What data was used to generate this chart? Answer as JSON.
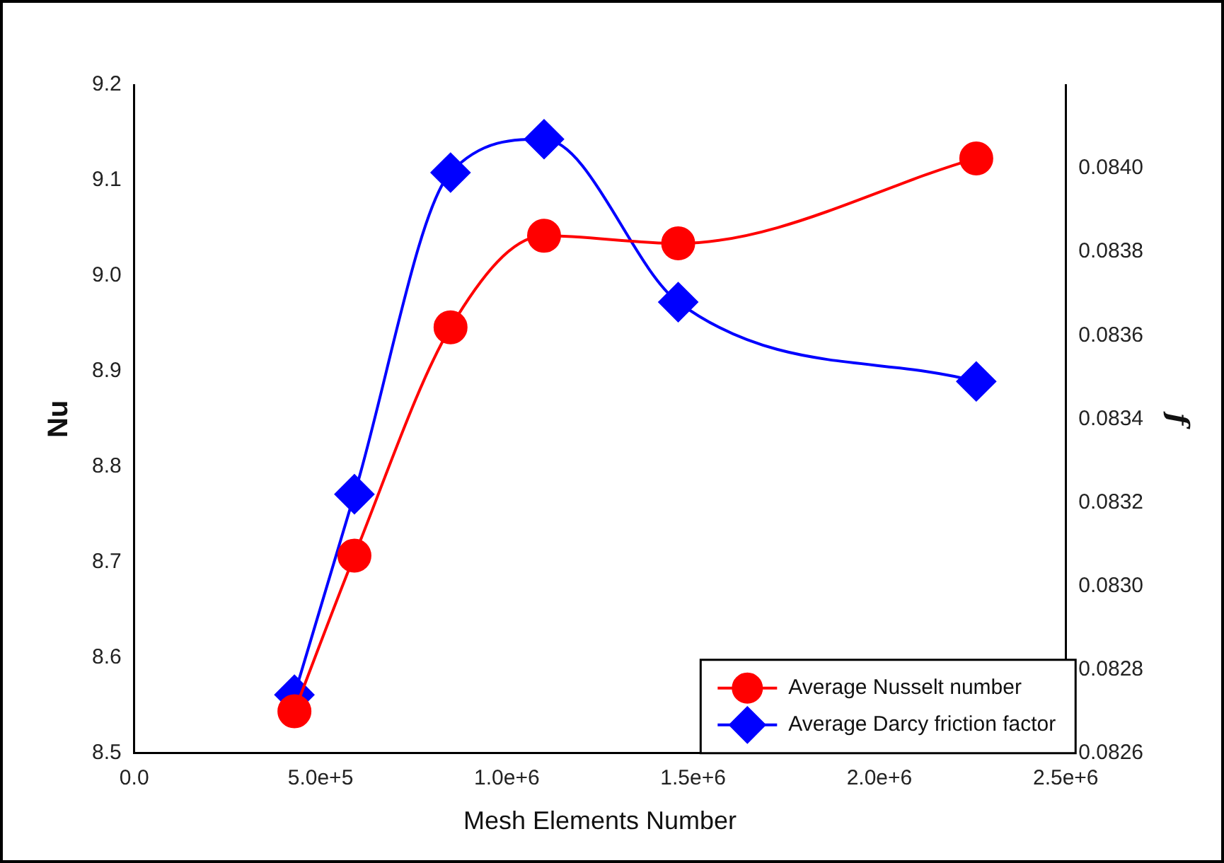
{
  "chart_data": {
    "type": "line",
    "xlabel": "Mesh Elements Number",
    "ylabel": "Nu",
    "y2label": "f",
    "xlim": [
      0,
      2500000
    ],
    "xticks": [
      {
        "value": 0,
        "label": "0.0"
      },
      {
        "value": 500000,
        "label": "5.0e+5"
      },
      {
        "value": 1000000,
        "label": "1.0e+6"
      },
      {
        "value": 1500000,
        "label": "1.5e+6"
      },
      {
        "value": 2000000,
        "label": "2.0e+6"
      },
      {
        "value": 2500000,
        "label": "2.5e+6"
      }
    ],
    "ylim": [
      8.5,
      9.2
    ],
    "yticks": [
      8.5,
      8.6,
      8.7,
      8.8,
      8.9,
      {
        "value": 9.0,
        "label": "9.0"
      },
      9.1,
      9.2
    ],
    "y2lim": [
      0.0826,
      0.0842
    ],
    "y2ticks": [
      {
        "value": 0.0826,
        "label": "0.0826"
      },
      {
        "value": 0.0828,
        "label": "0.0828"
      },
      {
        "value": 0.083,
        "label": "0.0830"
      },
      {
        "value": 0.0832,
        "label": "0.0832"
      },
      {
        "value": 0.0834,
        "label": "0.0834"
      },
      {
        "value": 0.0836,
        "label": "0.0836"
      },
      {
        "value": 0.0838,
        "label": "0.0838"
      },
      {
        "value": 0.084,
        "label": "0.0840"
      }
    ],
    "x": [
      430000,
      591000,
      849000,
      1100000,
      1460000,
      2260000
    ],
    "series": [
      {
        "name": "Average Nusselt number",
        "color": "#ff0000",
        "marker": "circle",
        "values": [
          8.544,
          8.707,
          8.946,
          9.042,
          9.034,
          9.123
        ]
      },
      {
        "name": "Average Darcy friction factor",
        "color": "#0000ff",
        "marker": "diamond",
        "axis": "y2",
        "values": [
          0.08274,
          0.08322,
          0.08399,
          0.08407,
          0.08368,
          0.08349
        ]
      }
    ],
    "legend": "bottom right",
    "grid": false
  }
}
